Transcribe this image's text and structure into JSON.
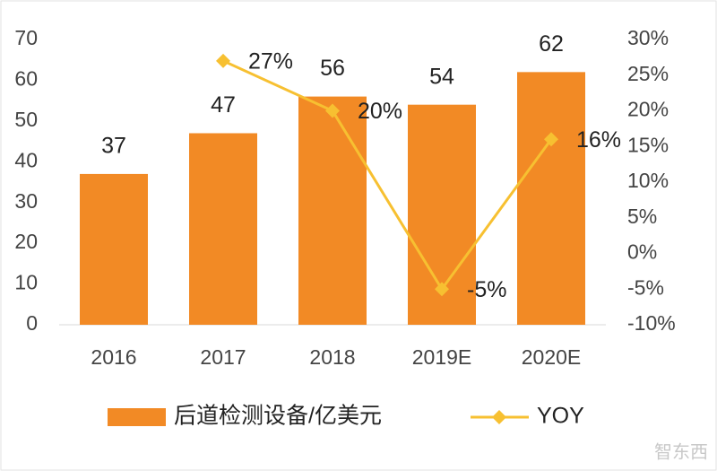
{
  "chart_data": {
    "type": "bar",
    "categories": [
      "2016",
      "2017",
      "2018",
      "2019E",
      "2020E"
    ],
    "series": [
      {
        "name": "后道检测设备/亿美元",
        "type": "bar",
        "color": "#f28a25",
        "values": [
          37,
          47,
          56,
          54,
          62
        ]
      },
      {
        "name": "YOY",
        "type": "line",
        "axis": "y2",
        "color": "#f7c031",
        "values": [
          null,
          27,
          20,
          -5,
          16
        ],
        "value_labels": [
          null,
          "27%",
          "20%",
          "-5%",
          "16%"
        ]
      }
    ],
    "ylim": [
      0,
      70
    ],
    "yticks": [
      0,
      10,
      20,
      30,
      40,
      50,
      60,
      70
    ],
    "y2lim": [
      -10,
      30
    ],
    "y2ticks": [
      {
        "value": -10,
        "label": "-10%"
      },
      {
        "value": -5,
        "label": "-5%"
      },
      {
        "value": 0,
        "label": "0%"
      },
      {
        "value": 5,
        "label": "5%"
      },
      {
        "value": 10,
        "label": "10%"
      },
      {
        "value": 15,
        "label": "15%"
      },
      {
        "value": 20,
        "label": "20%"
      },
      {
        "value": 25,
        "label": "25%"
      },
      {
        "value": 30,
        "label": "30%"
      }
    ],
    "grid": false,
    "legend": "bottom",
    "watermark": "智东西"
  }
}
